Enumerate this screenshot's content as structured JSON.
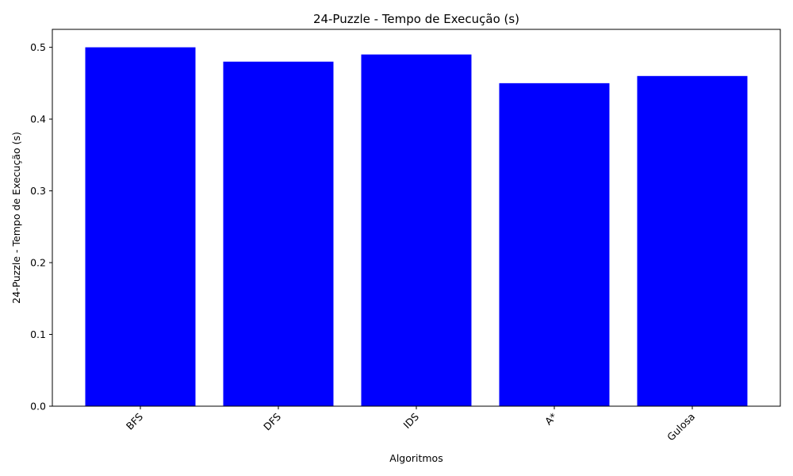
{
  "chart_data": {
    "type": "bar",
    "title": "24-Puzzle - Tempo de Execução (s)",
    "xlabel": "Algoritmos",
    "ylabel": "24-Puzzle - Tempo de Execução (s)",
    "categories": [
      "BFS",
      "DFS",
      "IDS",
      "A*",
      "Gulosa"
    ],
    "values": [
      0.5,
      0.48,
      0.49,
      0.45,
      0.46
    ],
    "ylim": [
      0,
      0.525
    ],
    "yticks": [
      "0.0",
      "0.1",
      "0.2",
      "0.3",
      "0.4",
      "0.5"
    ],
    "bar_color": "#0000ff",
    "grid": false,
    "x_tick_rotation": "45 degrees"
  }
}
